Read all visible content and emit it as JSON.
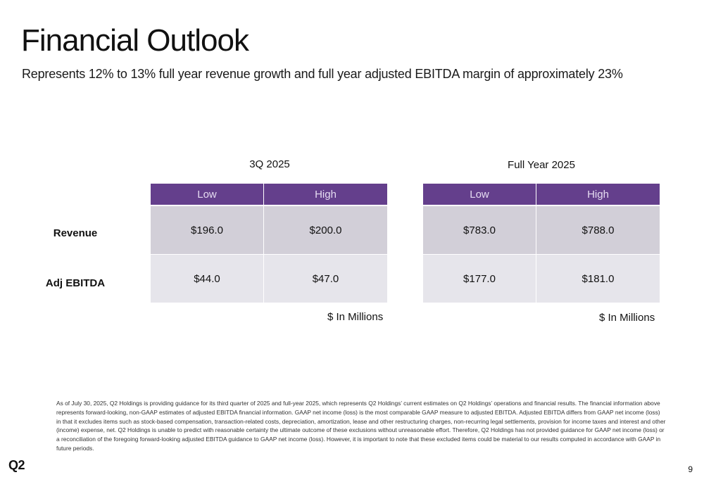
{
  "slide": {
    "title": "Financial Outlook",
    "subtitle": "Represents 12% to 13% full year revenue growth and full year adjusted EBITDA margin of approximately 23%"
  },
  "row_labels": [
    "Revenue",
    "Adj EBITDA"
  ],
  "tables": [
    {
      "title": "3Q 2025",
      "columns": [
        "Low",
        "High"
      ],
      "rows": [
        [
          "$196.0",
          "$200.0"
        ],
        [
          "$44.0",
          "$47.0"
        ]
      ],
      "unit_note": "$ In Millions"
    },
    {
      "title": "Full Year 2025",
      "columns": [
        "Low",
        "High"
      ],
      "rows": [
        [
          "$783.0",
          "$788.0"
        ],
        [
          "$177.0",
          "$181.0"
        ]
      ],
      "unit_note": "$ In Millions"
    }
  ],
  "footnote": "As of July 30, 2025, Q2 Holdings is providing guidance for its third quarter of 2025 and full-year 2025, which represents Q2 Holdings’ current estimates on Q2 Holdings’ operations and financial results. The financial information above represents forward-looking, non-GAAP estimates of adjusted EBITDA financial information. GAAP net income (loss) is the most comparable GAAP measure to adjusted EBITDA. Adjusted EBITDA differs from GAAP net income (loss) in that it excludes items such as stock-based compensation, transaction-related costs, depreciation, amortization, lease and other restructuring charges, non-recurring legal settlements, provision for income taxes and interest and other (income) expense, net. Q2 Holdings is unable to predict with reasonable certainty the ultimate outcome of these exclusions without unreasonable effort. Therefore, Q2 Holdings has not provided guidance for GAAP net income (loss) or a reconciliation of the foregoing forward-looking adjusted EBITDA guidance to GAAP net income (loss). However, it is important to note that these excluded items could be material to our results computed in accordance with GAAP in future periods.",
  "logo_text": "Q2",
  "page_number": "9",
  "colors": {
    "header_purple": "#643f8c",
    "header_text": "#e6dcf2",
    "row1_fill": "#d2cfd8",
    "row2_fill": "#e6e5eb"
  }
}
